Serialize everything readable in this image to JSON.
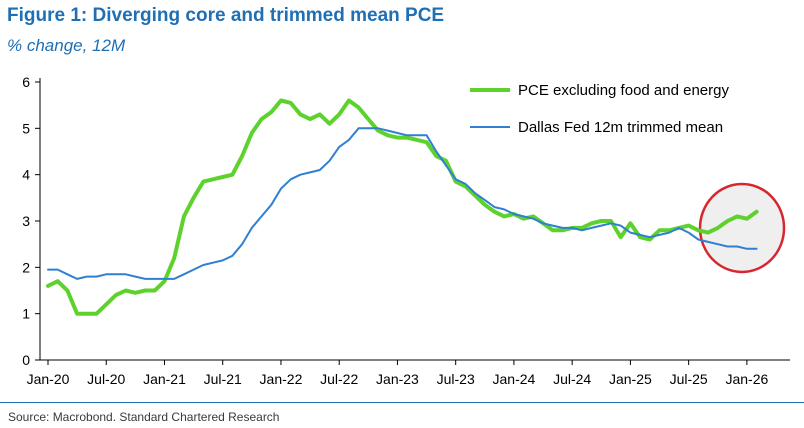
{
  "figure": {
    "title": "Figure 1: Diverging core and trimmed mean PCE",
    "subtitle": "% change, 12M",
    "source": "Source: Macrobond. Standard Chartered Research"
  },
  "colors": {
    "title": "#1f6fb5",
    "pce_line": "#5dd22d",
    "trimmed_line": "#2f80d1",
    "highlight_circle": "#d8262e",
    "highlight_fill": "#efefef"
  },
  "chart_data": {
    "type": "line",
    "title": "Figure 1: Diverging core and trimmed mean PCE",
    "subtitle": "% change, 12M",
    "xlabel": "",
    "ylabel": "",
    "ylim": [
      0,
      6
    ],
    "yticks": [
      "0",
      "1",
      "2",
      "3",
      "4",
      "5",
      "6"
    ],
    "xticks": [
      "Jan-20",
      "Jul-20",
      "Jan-21",
      "Jul-21",
      "Jan-22",
      "Jul-22",
      "Jan-23",
      "Jul-23",
      "Jan-24",
      "Jul-24",
      "Jan-25",
      "Jul-25",
      "Jan-26"
    ],
    "xtick_months": [
      0,
      6,
      12,
      18,
      24,
      30,
      36,
      42,
      48,
      54,
      60,
      66,
      72
    ],
    "xlim_months": [
      0,
      75
    ],
    "grid": false,
    "legend_position": "top-right",
    "annotation": "red circle highlighting divergence from Jun-25 to Feb-26",
    "series": [
      {
        "name": "PCE excluding food and energy",
        "color": "#5dd22d",
        "x_months": [
          0,
          1,
          2,
          3,
          4,
          5,
          6,
          7,
          8,
          9,
          10,
          11,
          12,
          13,
          14,
          15,
          16,
          17,
          18,
          19,
          20,
          21,
          22,
          23,
          24,
          25,
          26,
          27,
          28,
          29,
          30,
          31,
          32,
          33,
          34,
          35,
          36,
          37,
          38,
          39,
          40,
          41,
          42,
          43,
          44,
          45,
          46,
          47,
          48,
          49,
          50,
          51,
          52,
          53,
          54,
          55,
          56,
          57,
          58,
          59,
          60,
          61,
          62,
          63,
          64,
          65,
          66,
          67,
          68,
          69,
          70,
          71,
          72,
          73
        ],
        "values": [
          1.6,
          1.7,
          1.5,
          1.0,
          1.0,
          1.0,
          1.2,
          1.4,
          1.5,
          1.45,
          1.5,
          1.5,
          1.7,
          2.2,
          3.1,
          3.5,
          3.85,
          3.9,
          3.95,
          4.0,
          4.4,
          4.9,
          5.2,
          5.35,
          5.6,
          5.55,
          5.3,
          5.2,
          5.3,
          5.1,
          5.3,
          5.6,
          5.45,
          5.2,
          4.95,
          4.85,
          4.8,
          4.8,
          4.75,
          4.7,
          4.4,
          4.3,
          3.85,
          3.75,
          3.55,
          3.35,
          3.2,
          3.1,
          3.15,
          3.05,
          3.1,
          2.95,
          2.8,
          2.8,
          2.85,
          2.85,
          2.95,
          3.0,
          3.0,
          2.65,
          2.95,
          2.65,
          2.6,
          2.8,
          2.8,
          2.85,
          2.9,
          2.8,
          2.75,
          2.85,
          3.0,
          3.1,
          3.05,
          3.2
        ]
      },
      {
        "name": "Dallas Fed 12m trimmed mean",
        "color": "#2f80d1",
        "x_months": [
          0,
          1,
          2,
          3,
          4,
          5,
          6,
          7,
          8,
          9,
          10,
          11,
          12,
          13,
          14,
          15,
          16,
          17,
          18,
          19,
          20,
          21,
          22,
          23,
          24,
          25,
          26,
          27,
          28,
          29,
          30,
          31,
          32,
          33,
          34,
          35,
          36,
          37,
          38,
          39,
          40,
          41,
          42,
          43,
          44,
          45,
          46,
          47,
          48,
          49,
          50,
          51,
          52,
          53,
          54,
          55,
          56,
          57,
          58,
          59,
          60,
          61,
          62,
          63,
          64,
          65,
          66,
          67,
          68,
          69,
          70,
          71,
          72,
          73
        ],
        "values": [
          1.95,
          1.95,
          1.85,
          1.75,
          1.8,
          1.8,
          1.85,
          1.85,
          1.85,
          1.8,
          1.75,
          1.75,
          1.75,
          1.75,
          1.85,
          1.95,
          2.05,
          2.1,
          2.15,
          2.25,
          2.5,
          2.85,
          3.1,
          3.35,
          3.7,
          3.9,
          4.0,
          4.05,
          4.1,
          4.3,
          4.6,
          4.75,
          5.0,
          5.0,
          5.0,
          4.95,
          4.9,
          4.85,
          4.85,
          4.85,
          4.5,
          4.2,
          3.9,
          3.8,
          3.6,
          3.45,
          3.3,
          3.25,
          3.15,
          3.1,
          3.05,
          2.95,
          2.9,
          2.85,
          2.85,
          2.8,
          2.85,
          2.9,
          2.95,
          2.9,
          2.75,
          2.7,
          2.65,
          2.7,
          2.75,
          2.85,
          2.75,
          2.6,
          2.55,
          2.5,
          2.45,
          2.45,
          2.4,
          2.4
        ]
      }
    ]
  }
}
